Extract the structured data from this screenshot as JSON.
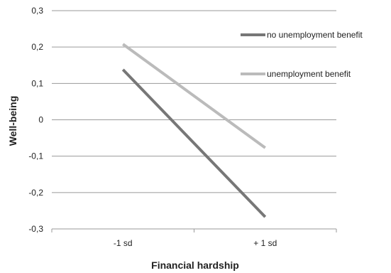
{
  "chart_data": {
    "type": "line",
    "x": [
      "-1 sd",
      "+ 1 sd"
    ],
    "series": [
      {
        "name": "no unemployment benefit",
        "values": [
          0.138,
          -0.267
        ],
        "color": "#777777"
      },
      {
        "name": "unemployment benefit",
        "values": [
          0.208,
          -0.077
        ],
        "color": "#bbbbbb"
      }
    ],
    "ylim": [
      -0.3,
      0.3
    ],
    "yticks": [
      0.3,
      0.2,
      0.1,
      0,
      -0.1,
      -0.2,
      -0.3
    ],
    "ytick_labels": [
      "0,3",
      "0,2",
      "0,1",
      "0",
      "-0,1",
      "-0,2",
      "-0,3"
    ],
    "xlabel": "Financial hardship",
    "ylabel": "Well-being",
    "grid": true,
    "legend_position": "right"
  }
}
